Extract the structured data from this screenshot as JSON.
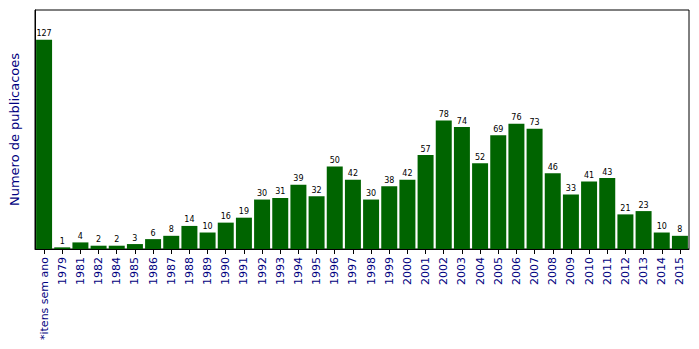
{
  "chart_data": {
    "type": "bar",
    "y_label": "Numero de publicacoes",
    "categories": [
      "*itens sem ano",
      "1979",
      "1981",
      "1982",
      "1984",
      "1985",
      "1986",
      "1987",
      "1988",
      "1989",
      "1990",
      "1991",
      "1992",
      "1993",
      "1994",
      "1995",
      "1996",
      "1997",
      "1998",
      "1999",
      "2000",
      "2001",
      "2002",
      "2003",
      "2004",
      "2005",
      "2006",
      "2007",
      "2008",
      "2009",
      "2010",
      "2011",
      "2012",
      "2013",
      "2014",
      "2015"
    ],
    "values": [
      127,
      1,
      4,
      2,
      2,
      3,
      6,
      8,
      14,
      10,
      16,
      19,
      30,
      31,
      39,
      32,
      50,
      42,
      30,
      38,
      42,
      57,
      78,
      74,
      52,
      69,
      76,
      73,
      46,
      33,
      41,
      43,
      21,
      23,
      10,
      8
    ],
    "color": "#006400",
    "ylim": [
      0,
      145
    ],
    "grid": false,
    "data_labels": true,
    "tick_labels": "x"
  }
}
